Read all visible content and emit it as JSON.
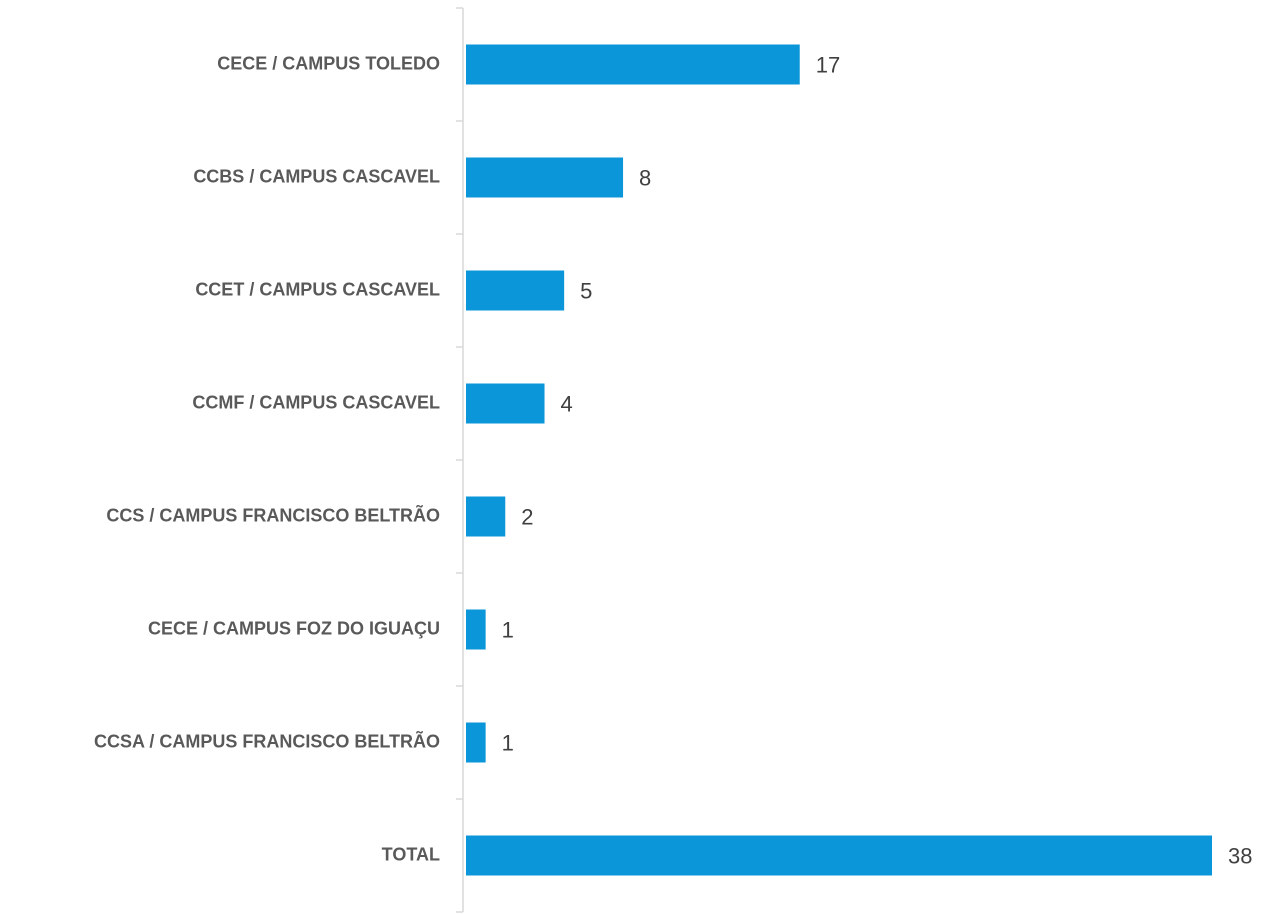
{
  "chart_data": {
    "type": "bar",
    "orientation": "horizontal",
    "categories": [
      "CECE / CAMPUS TOLEDO",
      "CCBS / CAMPUS CASCAVEL",
      "CCET / CAMPUS CASCAVEL",
      "CCMF / CAMPUS CASCAVEL",
      "CCS / CAMPUS FRANCISCO BELTRÃO",
      "CECE / CAMPUS FOZ DO IGUAÇU",
      "CCSA / CAMPUS FRANCISCO BELTRÃO",
      "TOTAL"
    ],
    "values": [
      17,
      8,
      5,
      4,
      2,
      1,
      1,
      38
    ],
    "color": "#0b96d9"
  }
}
